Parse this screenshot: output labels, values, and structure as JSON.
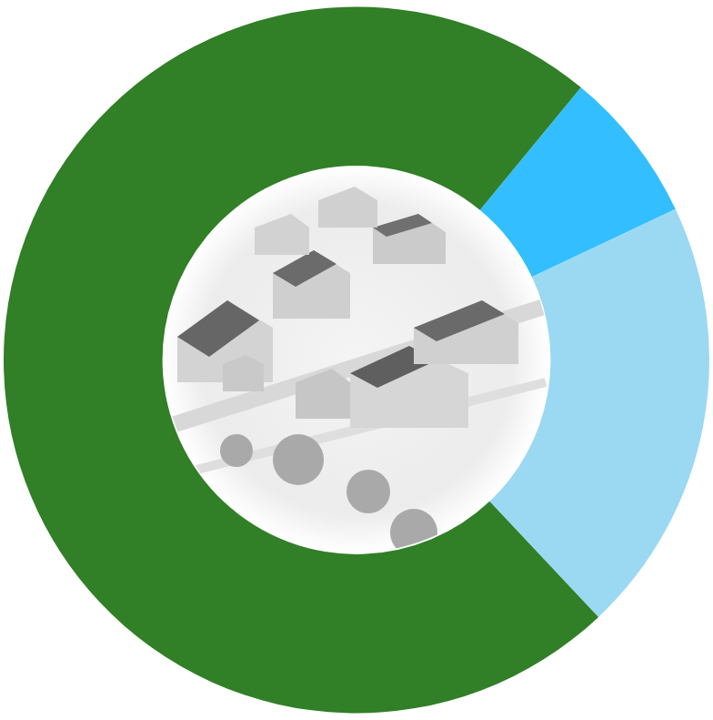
{
  "chart_data": {
    "type": "doughnut",
    "values": [
      7,
      20,
      73
    ],
    "colors": [
      "#33bfff",
      "#9bd9f3",
      "#317f27"
    ],
    "legend": false,
    "data_labels": false
  }
}
